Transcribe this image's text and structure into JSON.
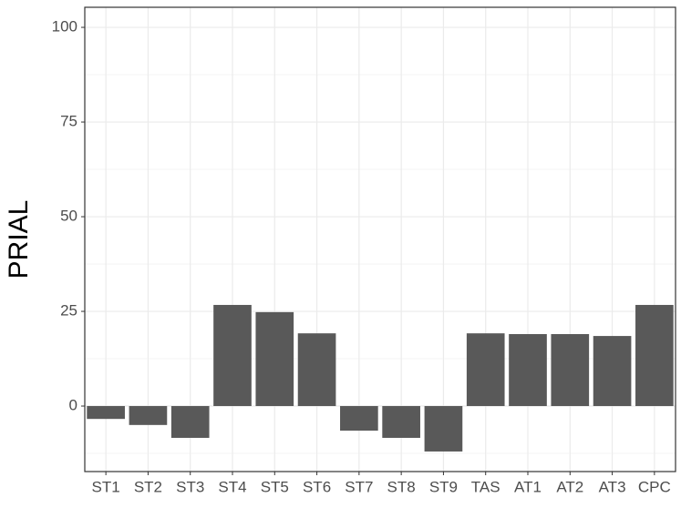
{
  "chart_data": {
    "type": "bar",
    "y_label": "PRIAL",
    "categories": [
      "ST1",
      "ST2",
      "ST3",
      "ST4",
      "ST5",
      "ST6",
      "ST7",
      "ST8",
      "ST9",
      "TAS",
      "AT1",
      "AT2",
      "AT3",
      "CPC"
    ],
    "values": [
      -3.4,
      -5,
      -8.4,
      26.7,
      24.8,
      19.2,
      -6.5,
      -8.4,
      -12,
      19.2,
      19,
      19,
      18.5,
      26.7
    ],
    "color": "#595959",
    "ylim": [
      -17.3,
      105.3
    ],
    "yticks": [
      0,
      25,
      50,
      75,
      100
    ],
    "grid": true
  }
}
